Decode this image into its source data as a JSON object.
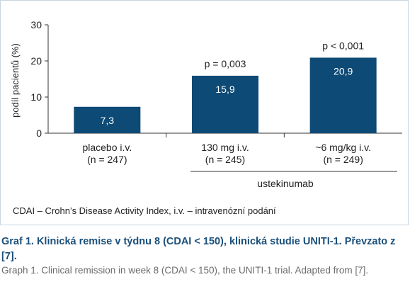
{
  "chart_data": {
    "type": "bar",
    "ylabel": "podíl pacientů (%)",
    "ylim": [
      0,
      30
    ],
    "yticks": [
      0,
      10,
      20,
      30
    ],
    "categories": [
      {
        "line1": "placebo i.v.",
        "line2": "(n = 247)"
      },
      {
        "line1": "130 mg i.v.",
        "line2": "(n = 245)"
      },
      {
        "line1": "~6 mg/kg i.v.",
        "line2": "(n = 249)"
      }
    ],
    "values": [
      7.3,
      15.9,
      20.9
    ],
    "value_labels": [
      "7,3",
      "15,9",
      "20,9"
    ],
    "p_values": [
      "",
      "p = 0,003",
      "p < 0,001"
    ],
    "group_label": "ustekinumab",
    "bar_color": "#0d4a75",
    "grid": false
  },
  "footnote": "CDAI – Crohn’s Disease Activity Index, i.v. – intravenózní podání",
  "caption": {
    "title": "Graf 1. Klinická remise v týdnu 8 (CDAI < 150), klinická studie UNITI-1. Převzato z [7].",
    "english": "Graph 1. Clinical remission in week 8 (CDAI < 150), the UNITI-1 trial. Adapted from [7]."
  }
}
